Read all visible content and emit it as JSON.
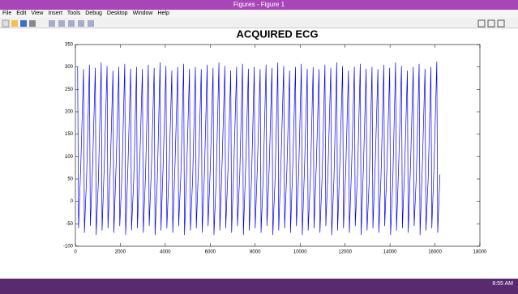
{
  "window": {
    "title": "Figures - Figure 1",
    "menu": [
      "File",
      "Edit",
      "View",
      "Insert",
      "Tools",
      "Debug",
      "Desktop",
      "Window",
      "Help"
    ],
    "clock": "8:55 AM"
  },
  "chart_data": {
    "type": "line",
    "title": "ACQUIRED ECG",
    "xlim": [
      0,
      18000
    ],
    "xticks": [
      0,
      2000,
      4000,
      6000,
      8000,
      10000,
      12000,
      14000,
      16000,
      18000
    ],
    "ylim": [
      -100,
      350
    ],
    "yticks": [
      -100,
      -50,
      0,
      50,
      100,
      150,
      200,
      250,
      300,
      350
    ],
    "series": [
      {
        "color": "#0000ff",
        "x": [
          100,
          140,
          240,
          362,
          402,
          502,
          624,
          664,
          764,
          886,
          926,
          1026,
          1148,
          1188,
          1288,
          1410,
          1450,
          1550,
          1672,
          1712,
          1812,
          1934,
          1974,
          2074,
          2196,
          2236,
          2336,
          2458,
          2498,
          2598,
          2720,
          2760,
          2860,
          2982,
          3022,
          3122,
          3244,
          3284,
          3384,
          3506,
          3546,
          3646,
          3768,
          3808,
          3908,
          4030,
          4070,
          4170,
          4292,
          4332,
          4432,
          4554,
          4594,
          4694,
          4816,
          4856,
          4956,
          5078,
          5118,
          5218,
          5340,
          5380,
          5480,
          5602,
          5642,
          5742,
          5864,
          5904,
          6004,
          6126,
          6166,
          6266,
          6388,
          6428,
          6528,
          6650,
          6690,
          6790,
          6912,
          6952,
          7052,
          7174,
          7214,
          7314,
          7436,
          7476,
          7576,
          7698,
          7738,
          7838,
          7960,
          8000,
          8100,
          8222,
          8262,
          8362,
          8484,
          8524,
          8624,
          8746,
          8786,
          8886,
          9008,
          9048,
          9148,
          9270,
          9310,
          9410,
          9532,
          9572,
          9672,
          9794,
          9834,
          9934,
          10056,
          10096,
          10196,
          10318,
          10358,
          10458,
          10580,
          10620,
          10720,
          10842,
          10882,
          10982,
          11104,
          11144,
          11244,
          11366,
          11406,
          11506,
          11628,
          11668,
          11768,
          11890,
          11930,
          12030,
          12152,
          12192,
          12292,
          12414,
          12454,
          12554,
          12676,
          12716,
          12816,
          12938,
          12978,
          13078,
          13200,
          13240,
          13340,
          13462,
          13502,
          13602,
          13724,
          13764,
          13864,
          13986,
          14026,
          14126,
          14248,
          14288,
          14388,
          14510,
          14550,
          14650,
          14772,
          14812,
          14912,
          15034,
          15074,
          15174,
          15296,
          15336,
          15436,
          15558,
          15598,
          15698,
          15820,
          15860,
          15960,
          16082,
          16122,
          16222
        ],
        "values": [
          300,
          -60,
          80,
          295,
          -70,
          60,
          305,
          -55,
          75,
          298,
          -75,
          50,
          310,
          -65,
          85,
          302,
          -60,
          70,
          292,
          -70,
          80,
          300,
          -55,
          60,
          307,
          -75,
          75,
          296,
          -65,
          50,
          300,
          -60,
          80,
          295,
          -70,
          60,
          305,
          -55,
          75,
          298,
          -75,
          50,
          310,
          -65,
          85,
          302,
          -60,
          70,
          292,
          -70,
          80,
          300,
          -55,
          60,
          307,
          -75,
          75,
          296,
          -65,
          50,
          300,
          -60,
          80,
          295,
          -70,
          60,
          305,
          -55,
          75,
          298,
          -75,
          50,
          310,
          -65,
          85,
          302,
          -60,
          70,
          292,
          -70,
          80,
          300,
          -55,
          60,
          307,
          -75,
          75,
          296,
          -65,
          50,
          300,
          -60,
          80,
          295,
          -70,
          60,
          305,
          -55,
          75,
          298,
          -75,
          50,
          310,
          -65,
          85,
          302,
          -60,
          70,
          292,
          -70,
          80,
          300,
          -55,
          60,
          307,
          -75,
          75,
          296,
          -65,
          50,
          300,
          -60,
          80,
          295,
          -70,
          60,
          305,
          -55,
          75,
          298,
          -75,
          50,
          310,
          -65,
          85,
          302,
          -60,
          70,
          292,
          -70,
          80,
          300,
          -55,
          60,
          307,
          -75,
          75,
          296,
          -65,
          50,
          300,
          -60,
          80,
          295,
          -70,
          60,
          305,
          -55,
          75,
          298,
          -75,
          50,
          310,
          -65,
          85,
          302,
          -60,
          70,
          292,
          -70,
          80,
          300,
          -55,
          60,
          307,
          -75,
          75,
          296,
          -65,
          50,
          300,
          -60,
          80,
          312,
          -70,
          60
        ]
      }
    ]
  }
}
